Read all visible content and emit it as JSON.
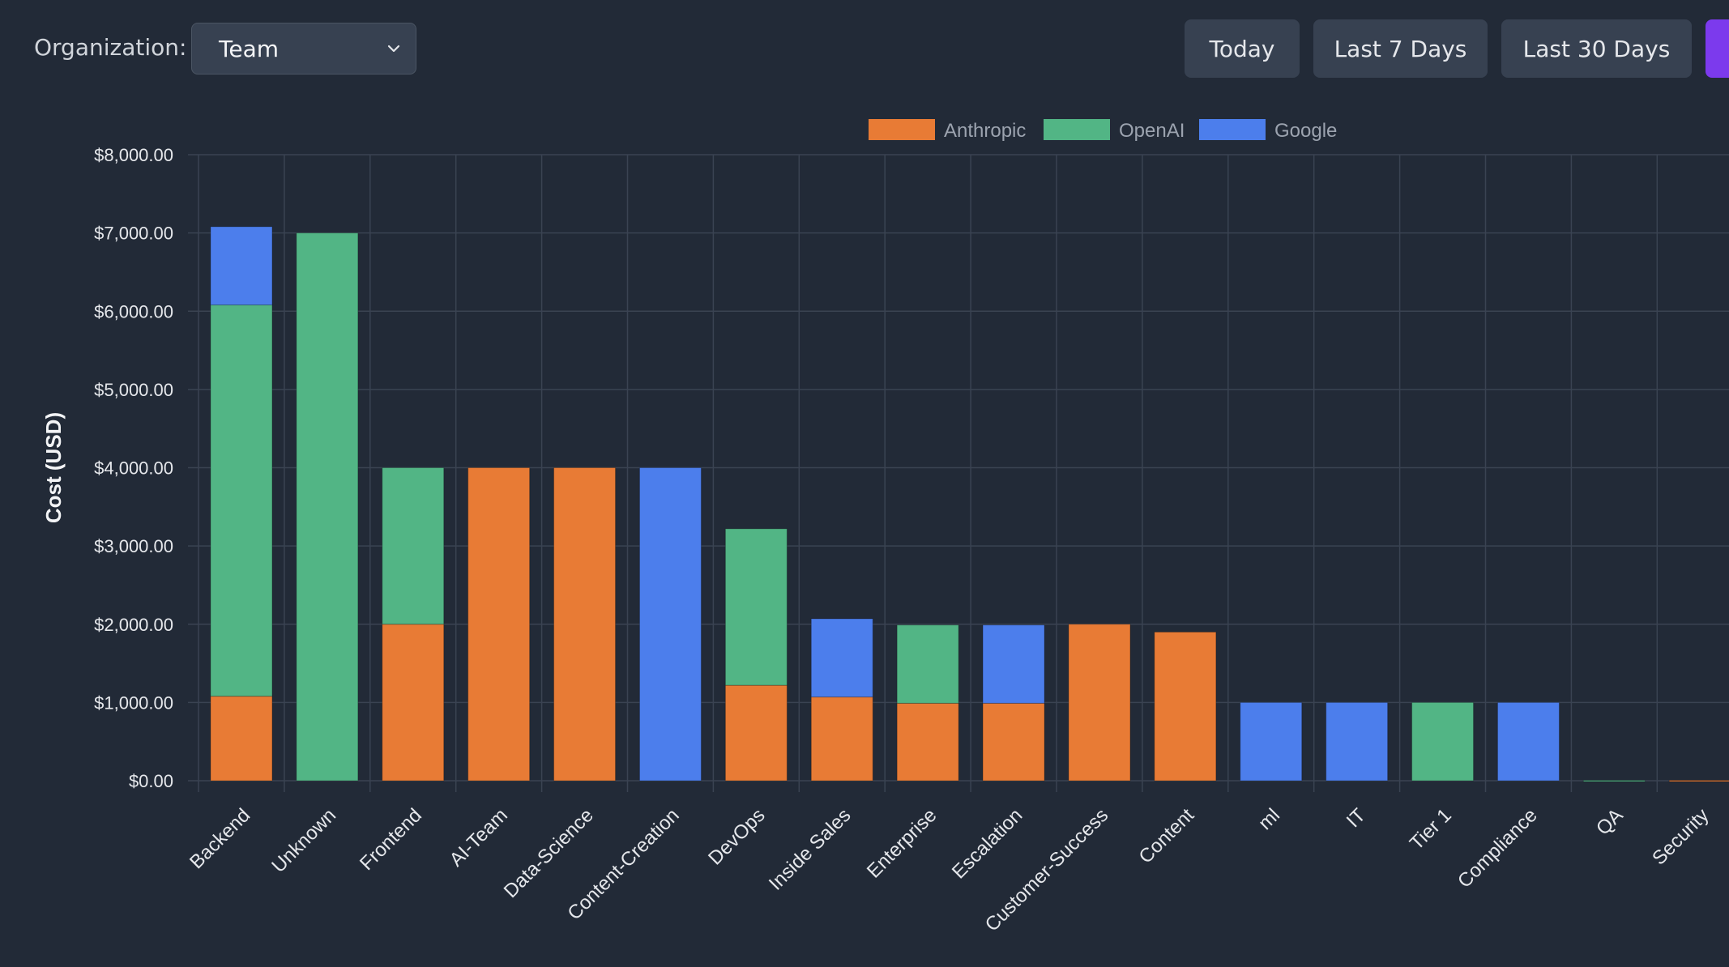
{
  "toolbar": {
    "org_label": "Organization:",
    "org_value": "Team",
    "buttons": [
      "Today",
      "Last 7 Days",
      "Last 30 Days"
    ]
  },
  "colors": {
    "Anthropic": "#e87b35",
    "OpenAI": "#52b585",
    "Google": "#4c7eec",
    "active_button": "#7c3aed"
  },
  "chart_data": {
    "type": "bar",
    "stacked": true,
    "ylabel": "Cost (USD)",
    "xlabel": "",
    "ylim": [
      0,
      8000
    ],
    "yticks": [
      "$0.00",
      "$1,000.00",
      "$2,000.00",
      "$3,000.00",
      "$4,000.00",
      "$5,000.00",
      "$6,000.00",
      "$7,000.00",
      "$8,000.00"
    ],
    "legend_position": "top",
    "grid": true,
    "categories": [
      "Backend",
      "Unknown",
      "Frontend",
      "AI-Team",
      "Data-Science",
      "Content-Creation",
      "DevOps",
      "Inside Sales",
      "Enterprise",
      "Escalation",
      "Customer-Success",
      "Content",
      "ml",
      "IT",
      "Tier 1",
      "Compliance",
      "QA",
      "Security"
    ],
    "series": [
      {
        "name": "Anthropic",
        "values": [
          1080,
          0,
          2000,
          4000,
          4000,
          0,
          1220,
          1070,
          990,
          990,
          2000,
          1900,
          0,
          0,
          0,
          0,
          0,
          5
        ]
      },
      {
        "name": "OpenAI",
        "values": [
          5000,
          7000,
          2000,
          0,
          0,
          0,
          2000,
          0,
          1000,
          0,
          0,
          0,
          0,
          0,
          1000,
          0,
          5,
          0
        ]
      },
      {
        "name": "Google",
        "values": [
          1000,
          0,
          0,
          0,
          0,
          4000,
          0,
          1000,
          0,
          1000,
          0,
          0,
          1000,
          1000,
          0,
          1000,
          0,
          0
        ]
      }
    ]
  }
}
